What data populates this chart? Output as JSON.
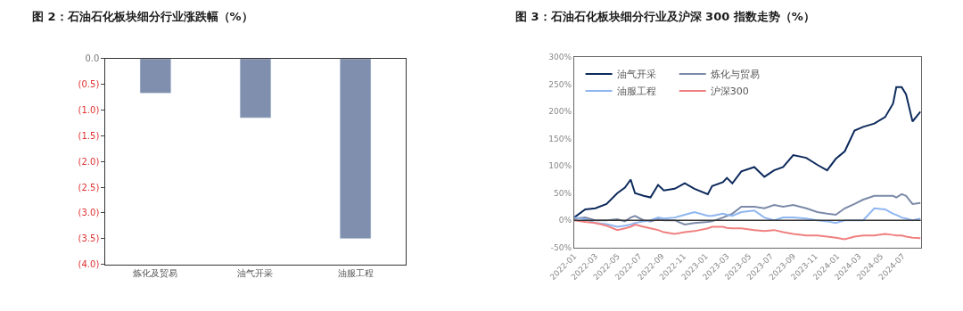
{
  "chart_data": [
    {
      "type": "bar",
      "title": "图 2：石油石化板块细分行业涨跌幅（%）",
      "categories": [
        "炼化及贸易",
        "油气开采",
        "油服工程"
      ],
      "values": [
        -0.67,
        -1.15,
        -3.5
      ],
      "color": "#7f8fad",
      "ylim": [
        -4,
        0
      ],
      "yticks": [
        {
          "value": 0,
          "label": "0.0"
        },
        {
          "value": -0.5,
          "label": "(0.5)"
        },
        {
          "value": -1,
          "label": "(1.0)"
        },
        {
          "value": -1.5,
          "label": "(1.5)"
        },
        {
          "value": -2,
          "label": "(2.0)"
        },
        {
          "value": -2.5,
          "label": "(2.5)"
        },
        {
          "value": -3,
          "label": "(3.0)"
        },
        {
          "value": -3.5,
          "label": "(3.5)"
        },
        {
          "value": -4,
          "label": "(4.0)"
        }
      ],
      "legend": false
    },
    {
      "type": "line",
      "title": "图 3：石油石化板块细分行业及沪深 300 指数走势（%）",
      "x": [
        "2022-01-01",
        "2022-02-01",
        "2022-03-01",
        "2022-04-01",
        "2022-05-01",
        "2022-05-22",
        "2022-06-07",
        "2022-06-19",
        "2022-07-13",
        "2022-08-01",
        "2022-08-22",
        "2022-09-07",
        "2022-10-07",
        "2022-11-04",
        "2022-12-01",
        "2023-01-07",
        "2023-01-19",
        "2023-02-18",
        "2023-03-01",
        "2023-03-16",
        "2023-04-10",
        "2023-05-16",
        "2023-06-13",
        "2023-07-10",
        "2023-08-04",
        "2023-09-01",
        "2023-10-07",
        "2023-11-07",
        "2023-12-04",
        "2023-12-28",
        "2024-01-22",
        "2024-02-18",
        "2024-03-13",
        "2024-04-13",
        "2024-05-13",
        "2024-06-04",
        "2024-06-13",
        "2024-06-28",
        "2024-07-10",
        "2024-07-28",
        "2024-08-19"
      ],
      "series": [
        {
          "name": "油气开采",
          "color": "#0d2a5c",
          "values": [
            5,
            20,
            22,
            30,
            50,
            60,
            75,
            50,
            45,
            42,
            65,
            55,
            58,
            68,
            58,
            48,
            63,
            70,
            78,
            68,
            90,
            98,
            80,
            92,
            98,
            120,
            115,
            102,
            92,
            113,
            127,
            165,
            172,
            178,
            190,
            215,
            245,
            245,
            232,
            182,
            200
          ]
        },
        {
          "name": "炼化与贸易",
          "color": "#7b8aa8",
          "values": [
            3,
            5,
            0,
            0,
            2,
            -2,
            5,
            8,
            0,
            -2,
            2,
            0,
            0,
            -8,
            -5,
            -3,
            -2,
            5,
            8,
            12,
            25,
            25,
            22,
            28,
            25,
            28,
            22,
            15,
            12,
            10,
            22,
            30,
            38,
            45,
            45,
            45,
            42,
            48,
            45,
            30,
            32
          ]
        },
        {
          "name": "油服工程",
          "color": "#8fb6f0",
          "values": [
            5,
            2,
            -5,
            -7,
            -12,
            -10,
            -8,
            -5,
            -2,
            0,
            5,
            3,
            5,
            10,
            15,
            8,
            8,
            12,
            10,
            8,
            15,
            18,
            5,
            0,
            5,
            5,
            3,
            0,
            -2,
            -5,
            0,
            0,
            0,
            22,
            20,
            12,
            10,
            5,
            3,
            0,
            3
          ]
        },
        {
          "name": "沪深300",
          "color": "#f08080",
          "values": [
            0,
            -3,
            -5,
            -10,
            -18,
            -15,
            -12,
            -8,
            -12,
            -15,
            -18,
            -22,
            -25,
            -22,
            -20,
            -15,
            -12,
            -12,
            -14,
            -15,
            -15,
            -18,
            -20,
            -18,
            -22,
            -25,
            -28,
            -28,
            -30,
            -32,
            -35,
            -30,
            -28,
            -28,
            -25,
            -27,
            -28,
            -28,
            -30,
            -32,
            -33
          ]
        }
      ],
      "xlim": [
        "2022-01-01",
        "2024-08-20"
      ],
      "xticks": [
        "2022-01",
        "2022-03",
        "2022-05",
        "2022-07",
        "2022-09",
        "2022-11",
        "2023-01",
        "2023-03",
        "2023-05",
        "2023-07",
        "2023-09",
        "2023-11",
        "2024-01",
        "2024-03",
        "2024-05",
        "2024-07"
      ],
      "ylim": [
        -50,
        300
      ],
      "yticks": [
        {
          "value": -50,
          "label": "-50%"
        },
        {
          "value": 0,
          "label": "0%"
        },
        {
          "value": 50,
          "label": "50%"
        },
        {
          "value": 100,
          "label": "100%"
        },
        {
          "value": 150,
          "label": "150%"
        },
        {
          "value": 200,
          "label": "200%"
        },
        {
          "value": 250,
          "label": "250%"
        },
        {
          "value": 300,
          "label": "300%"
        }
      ],
      "ref_lines": [
        {
          "axis": "y",
          "value": 0,
          "color": "#333333"
        }
      ],
      "legend": "top left",
      "line_style": "solid",
      "marker": "none"
    }
  ]
}
